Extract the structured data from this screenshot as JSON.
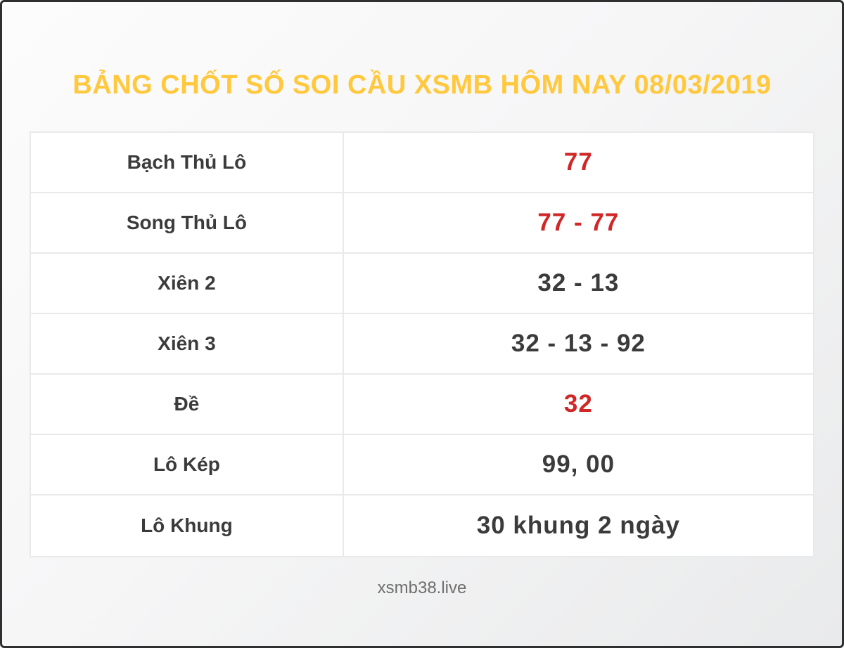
{
  "page": {
    "title": "BẢNG CHỐT SỐ SOI CẦU XSMB HÔM NAY 08/03/2019",
    "footer": "xsmb38.live"
  },
  "colors": {
    "title_gold": "#ffc83d",
    "value_red": "#d02727",
    "text_dark": "#3b3b3b",
    "table_border": "#e9e9e9",
    "outer_border": "#2f2f2f"
  },
  "chart_data": {
    "type": "table",
    "title": "BẢNG CHỐT SỐ SOI CẦU XSMB HÔM NAY 08/03/2019",
    "columns": [
      "label",
      "value"
    ],
    "rows": [
      {
        "label": "Bạch Thủ Lô",
        "value": "77",
        "highlight": true
      },
      {
        "label": "Song Thủ Lô",
        "value": "77 - 77",
        "highlight": true
      },
      {
        "label": "Xiên 2",
        "value": "32 - 13",
        "highlight": false
      },
      {
        "label": "Xiên 3",
        "value": "32 - 13 - 92",
        "highlight": false
      },
      {
        "label": "Đề",
        "value": "32",
        "highlight": true
      },
      {
        "label": "Lô Kép",
        "value": "99, 00",
        "highlight": false
      },
      {
        "label": "Lô Khung",
        "value": "30 khung 2 ngày",
        "highlight": false
      }
    ]
  }
}
